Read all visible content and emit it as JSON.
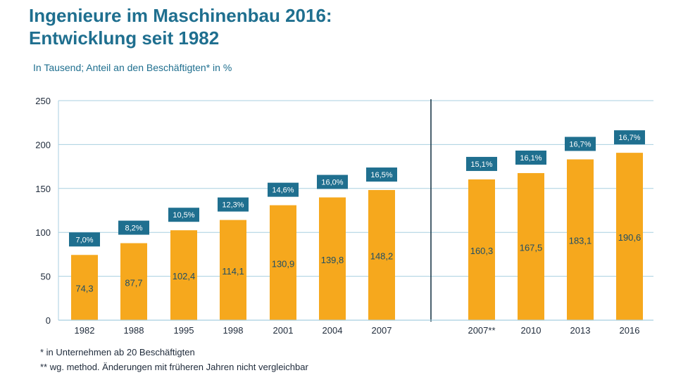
{
  "title_line1": "Ingenieure im Maschinenbau 2016:",
  "title_line2": "Entwicklung seit 1982",
  "subtitle": "In Tausend; Anteil an den Beschäftigten* in %",
  "footnotes": [
    "*  in Unternehmen ab 20 Beschäftigten",
    "** wg. method. Änderungen mit früheren Jahren nicht vergleichbar"
  ],
  "colors": {
    "bar": "#f6a81d",
    "label_box": "#1f6f8f",
    "grid": "#a8cfe0",
    "title": "#1f6f8f",
    "value_text": "#1f4e66"
  },
  "chart_data": {
    "type": "bar",
    "title": "Ingenieure im Maschinenbau 2016: Entwicklung seit 1982",
    "subtitle": "In Tausend; Anteil an den Beschäftigten* in %",
    "xlabel": "",
    "ylabel": "",
    "ylim": [
      0,
      250
    ],
    "yticks": [
      0,
      50,
      100,
      150,
      200,
      250
    ],
    "grid": true,
    "categories": [
      "1982",
      "1988",
      "1995",
      "1998",
      "2001",
      "2004",
      "2007",
      "2007**",
      "2010",
      "2013",
      "2016"
    ],
    "values": [
      74.3,
      87.7,
      102.4,
      114.1,
      130.9,
      139.8,
      148.2,
      160.3,
      167.5,
      183.1,
      190.6
    ],
    "value_labels": [
      "74,3",
      "87,7",
      "102,4",
      "114,1",
      "130,9",
      "139,8",
      "148,2",
      "160,3",
      "167,5",
      "183,1",
      "190,6"
    ],
    "share_labels": [
      "7,0%",
      "8,2%",
      "10,5%",
      "12,3%",
      "14,6%",
      "16,0%",
      "16,5%",
      "15,1%",
      "16,1%",
      "16,7%",
      "16,7%"
    ],
    "separator_after_index": 6
  }
}
